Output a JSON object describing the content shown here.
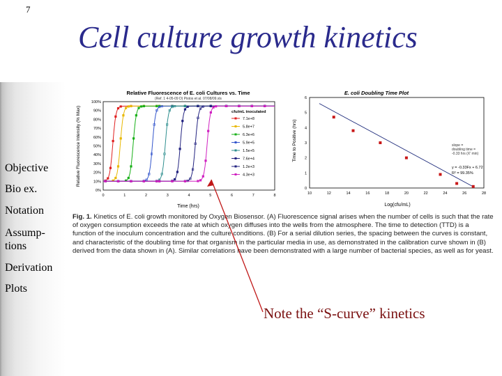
{
  "slide": {
    "number": "7",
    "title": "Cell culture growth kinetics"
  },
  "sidebar": {
    "items": [
      {
        "label": "Objective"
      },
      {
        "label": "Bio ex."
      },
      {
        "label": "Notation"
      },
      {
        "label": "Assump-tions",
        "lines": [
          "Assump-",
          "tions"
        ]
      },
      {
        "label": "Derivation"
      },
      {
        "label": "Plots"
      }
    ]
  },
  "note": "Note the “S-curve” kinetics",
  "colors": {
    "title": "#2a2a8c",
    "note": "#7a1010",
    "arrow": "#c01818"
  },
  "caption": {
    "fig_label": "Fig. 1.",
    "text": " Kinetics of E. coli growth monitored by Oxygen Biosensor. (A) Fluorescence signal arises when the number of cells is such that the rate of oxygen consumption exceeds the rate at which oxygen diffuses into the wells from the atmosphere. The time to detection (TTD) is a function of the inoculum concentration and the culture conditions. (B) For a serial dilution series, the spacing between the curves is constant, and characteristic of the doubling time for that organism in the particular media in use, as demonstrated in the calibration curve shown in (B) derived from the data shown in (A). Similar correlations have been demonstrated with a large number of bacterial species, as well as for yeast."
  },
  "chart_data": [
    {
      "type": "line",
      "title": "Relative Fluorescence of E. coli Cultures vs. Time",
      "subtitle": "(Ref. 1 4-05-09 D) Pistos et al. 07/08/09.xls",
      "xlabel": "Time (hrs)",
      "ylabel": "Relative Fluorescence Intensity (% Max)",
      "xlim": [
        0,
        8
      ],
      "ylim": [
        0,
        100
      ],
      "x_ticks": [
        "0",
        "1",
        "2",
        "3",
        "4",
        "5",
        "6",
        "7",
        "8"
      ],
      "y_ticks": [
        "100%",
        "90%",
        "80%",
        "70%",
        "60%",
        "50%",
        "40%",
        "30%",
        "20%",
        "10%",
        "0%"
      ],
      "legend_title": "cfu/mL inoculated",
      "legend_position": "right",
      "grid": false,
      "series": [
        {
          "name": "7.1e+8",
          "color": "#e02020",
          "marker": "square",
          "midpoint": 0.45
        },
        {
          "name": "5.8e+7",
          "color": "#e8b800",
          "marker": "square",
          "midpoint": 0.8
        },
        {
          "name": "6.3e+6",
          "color": "#18b018",
          "marker": "triangle",
          "midpoint": 1.4
        },
        {
          "name": "5.9e+5",
          "color": "#3355cc",
          "marker": "circle",
          "midpoint": 2.3
        },
        {
          "name": "1.5e+5",
          "color": "#2f8f8f",
          "marker": "circle",
          "midpoint": 2.9
        },
        {
          "name": "7.6e+4",
          "color": "#232380",
          "marker": "cross",
          "midpoint": 3.6
        },
        {
          "name": "1.2e+3",
          "color": "#232380",
          "marker": "diamond",
          "midpoint": 4.3
        },
        {
          "name": "4.3e+3",
          "color": "#d020c0",
          "marker": "square",
          "midpoint": 4.85
        }
      ]
    },
    {
      "type": "scatter",
      "title": "E. coli Doubling Time Plot",
      "xlabel": "Log(cfu/mL)",
      "ylabel": "Time to Positive (hrs)",
      "xlim": [
        10,
        28
      ],
      "ylim": [
        0,
        6
      ],
      "x_ticks": [
        "10",
        "12",
        "14",
        "16",
        "18",
        "20",
        "22",
        "24",
        "26",
        "28"
      ],
      "y_ticks": [
        "0",
        "1",
        "2",
        "3",
        "4",
        "5",
        "6"
      ],
      "x": [
        12.5,
        14.5,
        17.3,
        20.0,
        23.5,
        25.2,
        26.9
      ],
      "y": [
        4.7,
        3.8,
        3.0,
        2.0,
        0.9,
        0.3,
        0.1
      ],
      "fit": {
        "equation": "y = -0.33Fx + 6.72",
        "r2": "R² = 99.35%",
        "x0": 11,
        "y0": 5.6,
        "x1": 27,
        "y1": 0.05
      },
      "annotation": "slope = - doubling time = -0.33 hrs (X' min)",
      "grid": false
    }
  ]
}
